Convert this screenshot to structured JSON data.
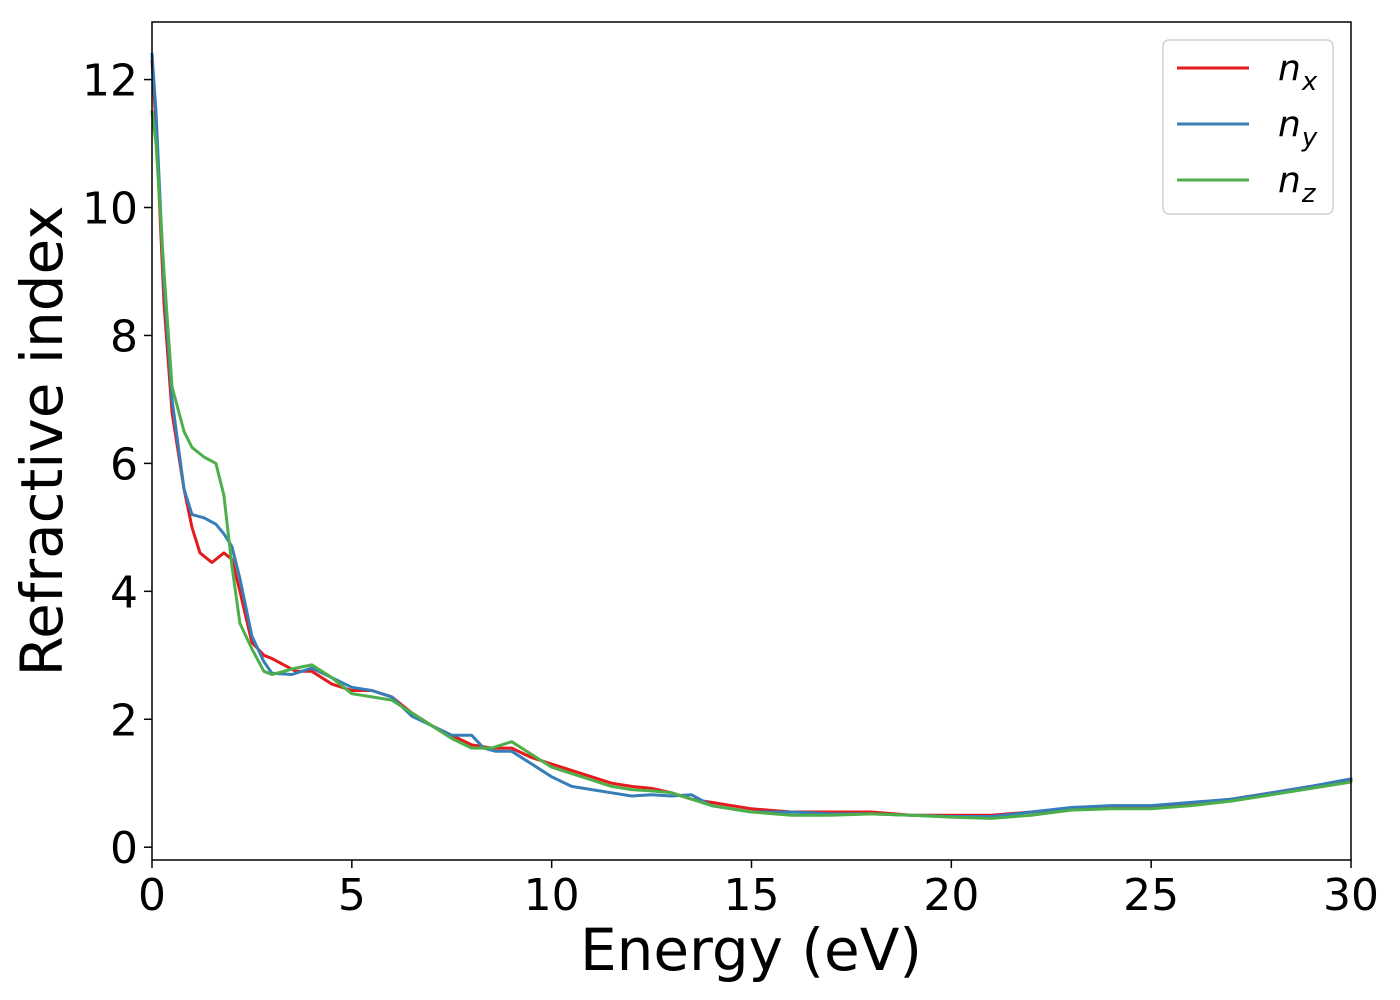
{
  "chart_data": {
    "type": "line",
    "title": "",
    "xlabel": "Energy (eV)",
    "ylabel": "Refractive index",
    "xlim": [
      0,
      30
    ],
    "ylim": [
      -0.2,
      12.9
    ],
    "xticks": [
      0,
      5,
      10,
      15,
      20,
      25,
      30
    ],
    "xtick_labels": [
      "0",
      "5",
      "10",
      "15",
      "20",
      "25",
      "30"
    ],
    "yticks": [
      0,
      2,
      4,
      6,
      8,
      10,
      12
    ],
    "ytick_labels": [
      "0",
      "2",
      "4",
      "6",
      "8",
      "10",
      "12"
    ],
    "grid": false,
    "legend": "top-right",
    "series": [
      {
        "name": "n",
        "subscript": "x",
        "color": "#e41a1c",
        "x": [
          0,
          0.1,
          0.3,
          0.5,
          0.8,
          1.0,
          1.2,
          1.5,
          1.8,
          2.0,
          2.2,
          2.5,
          2.8,
          3.0,
          3.3,
          3.6,
          4.0,
          4.5,
          5.0,
          5.5,
          6.0,
          6.5,
          7.0,
          7.5,
          8.0,
          8.5,
          9.0,
          9.5,
          10,
          10.5,
          11,
          11.5,
          12,
          12.5,
          13,
          13.5,
          14,
          15,
          16,
          17,
          18,
          19,
          20,
          21,
          22,
          23,
          24,
          25,
          26,
          27,
          28,
          29,
          30
        ],
        "y": [
          12.3,
          11.3,
          8.5,
          6.8,
          5.6,
          5.0,
          4.6,
          4.45,
          4.6,
          4.5,
          4.0,
          3.2,
          3.0,
          2.95,
          2.85,
          2.75,
          2.75,
          2.55,
          2.45,
          2.45,
          2.35,
          2.1,
          1.9,
          1.75,
          1.6,
          1.55,
          1.55,
          1.4,
          1.3,
          1.2,
          1.1,
          1.0,
          0.95,
          0.92,
          0.85,
          0.75,
          0.7,
          0.6,
          0.55,
          0.55,
          0.55,
          0.5,
          0.5,
          0.5,
          0.55,
          0.6,
          0.62,
          0.62,
          0.68,
          0.75,
          0.85,
          0.95,
          1.05
        ]
      },
      {
        "name": "n",
        "subscript": "y",
        "color": "#377eb8",
        "x": [
          0,
          0.1,
          0.3,
          0.5,
          0.8,
          1.0,
          1.3,
          1.6,
          1.8,
          2.0,
          2.2,
          2.5,
          2.8,
          3.0,
          3.5,
          4.0,
          4.5,
          5.0,
          5.5,
          6.0,
          6.5,
          7.0,
          7.5,
          8.0,
          8.3,
          8.6,
          9.0,
          9.5,
          10,
          10.5,
          11,
          11.5,
          12,
          12.5,
          13,
          13.5,
          14,
          15,
          16,
          17,
          18,
          19,
          20,
          21,
          22,
          23,
          24,
          25,
          26,
          27,
          28,
          29,
          30
        ],
        "y": [
          12.4,
          11.5,
          8.8,
          7.0,
          5.6,
          5.2,
          5.15,
          5.05,
          4.9,
          4.7,
          4.2,
          3.3,
          2.9,
          2.72,
          2.7,
          2.8,
          2.65,
          2.5,
          2.45,
          2.35,
          2.05,
          1.9,
          1.75,
          1.75,
          1.55,
          1.5,
          1.5,
          1.3,
          1.1,
          0.95,
          0.9,
          0.85,
          0.8,
          0.82,
          0.8,
          0.82,
          0.65,
          0.55,
          0.55,
          0.52,
          0.52,
          0.5,
          0.48,
          0.48,
          0.55,
          0.62,
          0.65,
          0.65,
          0.7,
          0.75,
          0.85,
          0.95,
          1.07
        ]
      },
      {
        "name": "n",
        "subscript": "z",
        "color": "#4daf4a",
        "x": [
          0,
          0.1,
          0.3,
          0.5,
          0.8,
          1.0,
          1.3,
          1.6,
          1.8,
          2.0,
          2.2,
          2.5,
          2.8,
          3.0,
          3.3,
          3.6,
          4.0,
          4.5,
          5.0,
          5.5,
          6.0,
          6.5,
          7.0,
          7.5,
          8.0,
          8.5,
          9.0,
          9.5,
          10,
          10.5,
          11,
          11.5,
          12,
          12.5,
          13,
          13.5,
          14,
          15,
          16,
          17,
          18,
          19,
          20,
          21,
          22,
          23,
          24,
          25,
          26,
          27,
          28,
          29,
          30
        ],
        "y": [
          11.5,
          11.0,
          9.0,
          7.2,
          6.5,
          6.25,
          6.1,
          6.0,
          5.5,
          4.4,
          3.5,
          3.1,
          2.75,
          2.7,
          2.75,
          2.8,
          2.85,
          2.65,
          2.4,
          2.35,
          2.3,
          2.1,
          1.9,
          1.7,
          1.55,
          1.55,
          1.65,
          1.45,
          1.25,
          1.15,
          1.05,
          0.95,
          0.9,
          0.88,
          0.85,
          0.75,
          0.65,
          0.55,
          0.5,
          0.5,
          0.52,
          0.5,
          0.47,
          0.45,
          0.5,
          0.58,
          0.6,
          0.6,
          0.65,
          0.72,
          0.82,
          0.92,
          1.02
        ]
      }
    ]
  }
}
